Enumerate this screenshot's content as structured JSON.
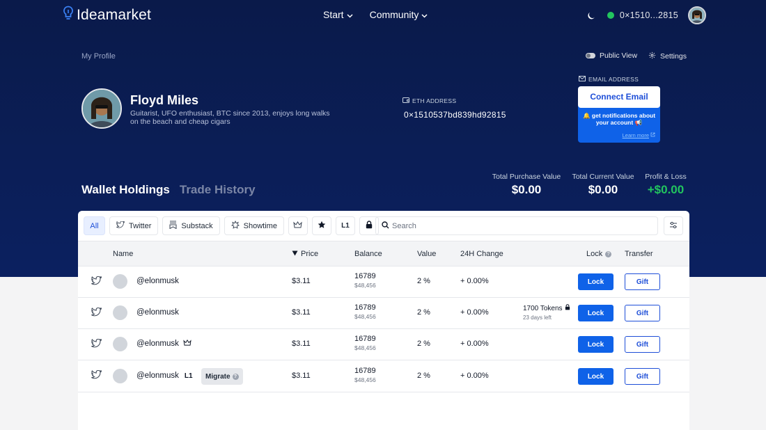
{
  "nav": {
    "logo": "Ideamarket",
    "menu": [
      {
        "label": "Start"
      },
      {
        "label": "Community"
      }
    ],
    "wallet_short": "0×1510...2815"
  },
  "profile": {
    "section_label": "My Profile",
    "public_view": "Public View",
    "settings": "Settings",
    "name": "Floyd Miles",
    "bio": "Guitarist, UFO enthusiast, BTC since 2013, enjoys long walks on the beach and cheap cigars",
    "eth_label": "ETH ADDRESS",
    "eth_address": "0×1510537bd839hd92815",
    "email_label": "EMAIL ADDRESS",
    "connect_email": "Connect Email",
    "notify_text": "🔔 get notifications about your account 📢",
    "learn_more": "Learn more"
  },
  "tabs": {
    "active": "Wallet Holdings",
    "inactive": "Trade History"
  },
  "stats": [
    {
      "label": "Total Purchase Value",
      "value": "$0.00"
    },
    {
      "label": "Total Current Value",
      "value": "$0.00"
    },
    {
      "label": "Profit & Loss",
      "value": "+$0.00"
    }
  ],
  "filters": {
    "all": "All",
    "twitter": "Twitter",
    "substack": "Substack",
    "showtime": "Showtime",
    "l1": "L1",
    "search_placeholder": "Search"
  },
  "table": {
    "headers": {
      "name": "Name",
      "price": "Price",
      "balance": "Balance",
      "value": "Value",
      "change": "24H Change",
      "lock": "Lock",
      "transfer": "Transfer"
    },
    "lock_label": "Lock",
    "gift_label": "Gift",
    "rows": [
      {
        "name": "@elonmusk",
        "price": "$3.11",
        "balance": "16789",
        "balance_usd": "$48,456",
        "value": "2 %",
        "change": "+ 0.00%"
      },
      {
        "name": "@elonmusk",
        "price": "$3.11",
        "balance": "16789",
        "balance_usd": "$48,456",
        "value": "2 %",
        "change": "+ 0.00%",
        "locked_tokens": "1700 Tokens",
        "locked_days": "23 days left"
      },
      {
        "name": "@elonmusk",
        "price": "$3.11",
        "balance": "16789",
        "balance_usd": "$48,456",
        "value": "2 %",
        "change": "+ 0.00%"
      },
      {
        "name": "@elonmusk",
        "tag": "L1",
        "migrate": "Migrate",
        "price": "$3.11",
        "balance": "16789",
        "balance_usd": "$48,456",
        "value": "2 %",
        "change": "+ 0.00%"
      }
    ]
  },
  "colors": {
    "hero": "#0b1e56",
    "accent": "#0f62e8",
    "positive": "#22c55e"
  }
}
